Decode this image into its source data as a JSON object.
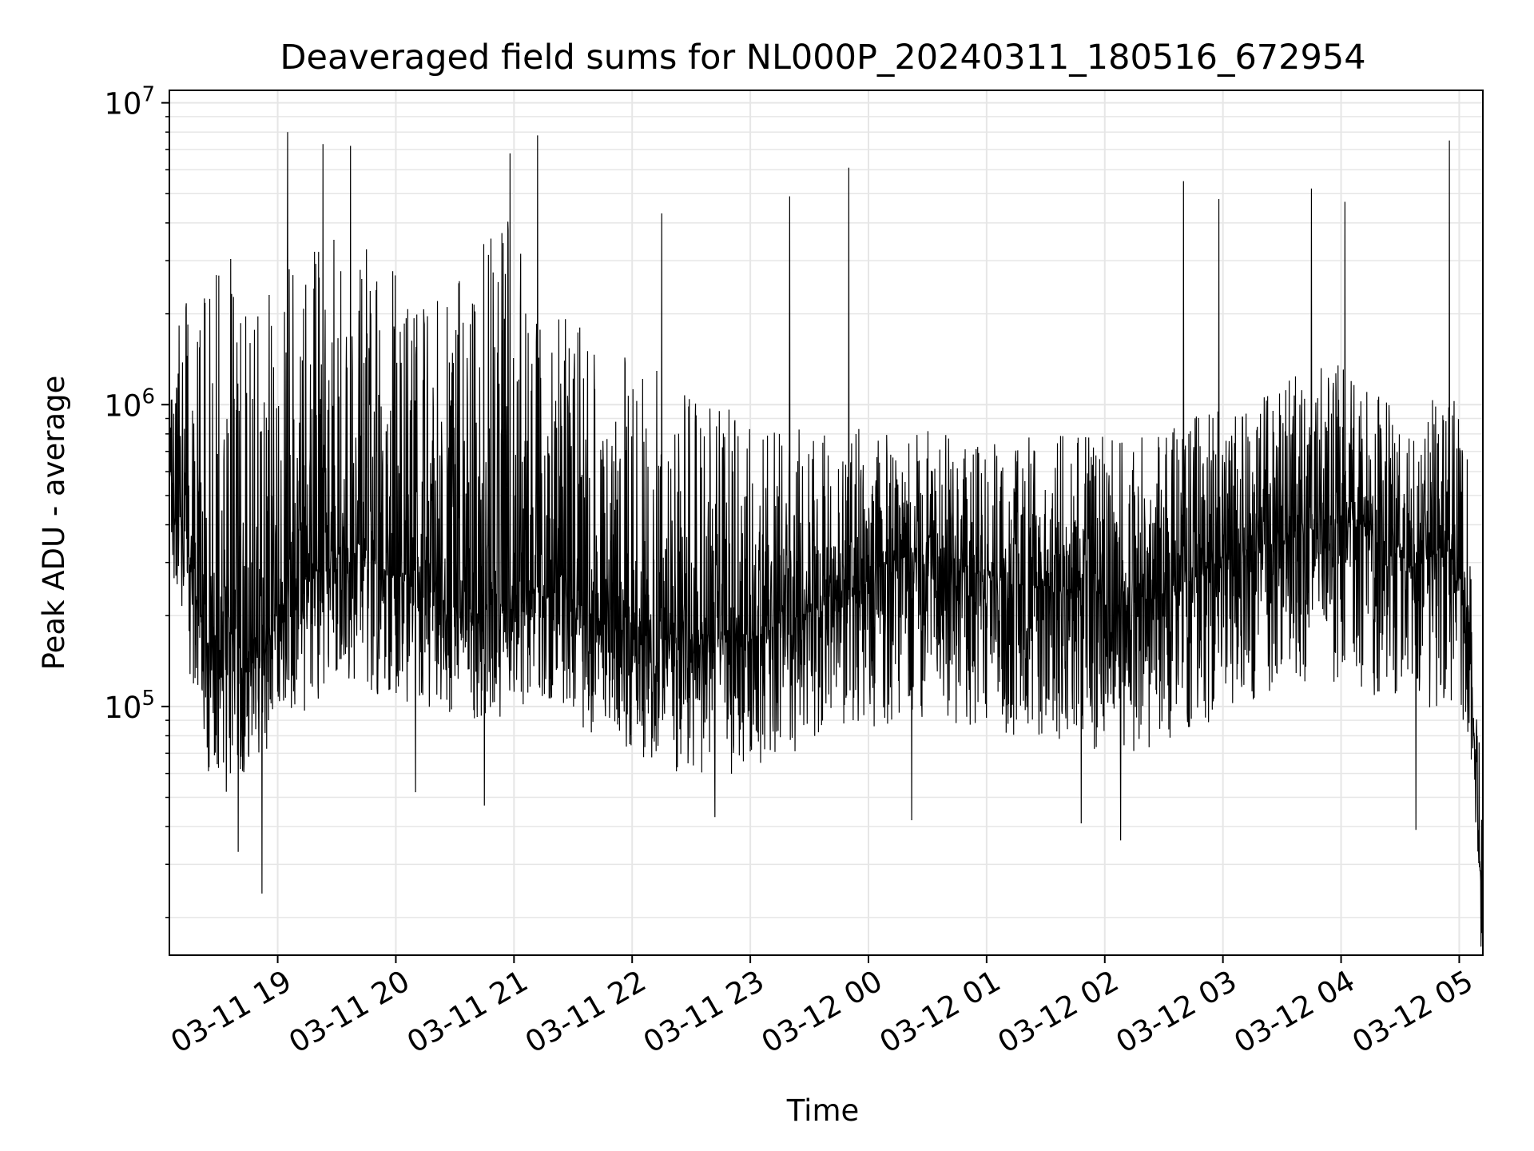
{
  "chart_data": {
    "type": "line",
    "title": "Deaveraged field sums for NL000P_20240311_180516_672954",
    "xlabel": "Time",
    "ylabel": "Peak ADU - average",
    "yscale": "log",
    "ylim": [
      15000,
      11000000
    ],
    "xlim": [
      "2024-03-11 18:05",
      "2024-03-12 05:12"
    ],
    "grid": true,
    "line_color": "#000000",
    "x_ticks": [
      {
        "value": "2024-03-11 19:00",
        "label": "03-11 19"
      },
      {
        "value": "2024-03-11 20:00",
        "label": "03-11 20"
      },
      {
        "value": "2024-03-11 21:00",
        "label": "03-11 21"
      },
      {
        "value": "2024-03-11 22:00",
        "label": "03-11 22"
      },
      {
        "value": "2024-03-11 23:00",
        "label": "03-11 23"
      },
      {
        "value": "2024-03-12 00:00",
        "label": "03-12 00"
      },
      {
        "value": "2024-03-12 01:00",
        "label": "03-12 01"
      },
      {
        "value": "2024-03-12 02:00",
        "label": "03-12 02"
      },
      {
        "value": "2024-03-12 03:00",
        "label": "03-12 03"
      },
      {
        "value": "2024-03-12 04:00",
        "label": "03-12 04"
      },
      {
        "value": "2024-03-12 05:00",
        "label": "03-12 05"
      }
    ],
    "y_ticks": [
      {
        "value": 100000,
        "base": "10",
        "exp": "5"
      },
      {
        "value": 1000000,
        "base": "10",
        "exp": "6"
      },
      {
        "value": 10000000,
        "base": "10",
        "exp": "7"
      }
    ],
    "series": [
      {
        "x": [
          "2024-03-11 18:05",
          "2024-03-11 18:15",
          "2024-03-11 18:25",
          "2024-03-11 18:35",
          "2024-03-11 18:45",
          "2024-03-11 18:55",
          "2024-03-11 19:10",
          "2024-03-11 19:25",
          "2024-03-11 19:40",
          "2024-03-11 19:55",
          "2024-03-11 20:10",
          "2024-03-11 20:25",
          "2024-03-11 20:40",
          "2024-03-11 20:55",
          "2024-03-11 21:10",
          "2024-03-11 21:25",
          "2024-03-11 21:40",
          "2024-03-11 21:55",
          "2024-03-11 22:10",
          "2024-03-11 22:25",
          "2024-03-11 22:40",
          "2024-03-11 22:55",
          "2024-03-11 23:10",
          "2024-03-11 23:25",
          "2024-03-11 23:40",
          "2024-03-11 23:55",
          "2024-03-12 00:10",
          "2024-03-12 00:25",
          "2024-03-12 00:40",
          "2024-03-12 00:55",
          "2024-03-12 01:10",
          "2024-03-12 01:25",
          "2024-03-12 01:40",
          "2024-03-12 01:55",
          "2024-03-12 02:10",
          "2024-03-12 02:25",
          "2024-03-12 02:40",
          "2024-03-12 02:55",
          "2024-03-12 03:10",
          "2024-03-12 03:25",
          "2024-03-12 03:40",
          "2024-03-12 03:55",
          "2024-03-12 04:10",
          "2024-03-12 04:25",
          "2024-03-12 04:40",
          "2024-03-12 04:55",
          "2024-03-12 05:05",
          "2024-03-12 05:12"
        ],
        "y": [
          700000,
          300000,
          150000,
          200000,
          150000,
          180000,
          250000,
          300000,
          350000,
          280000,
          250000,
          230000,
          200000,
          220000,
          250000,
          240000,
          200000,
          180000,
          170000,
          160000,
          170000,
          160000,
          180000,
          200000,
          220000,
          250000,
          300000,
          320000,
          300000,
          280000,
          260000,
          250000,
          250000,
          240000,
          220000,
          230000,
          260000,
          300000,
          330000,
          350000,
          380000,
          400000,
          420000,
          350000,
          300000,
          350000,
          200000,
          18000
        ],
        "upper_envelope": [
          1500000,
          2500000,
          3000000,
          3500000,
          2000000,
          2500000,
          3500000,
          4000000,
          3500000,
          3000000,
          2500000,
          2500000,
          3000000,
          5000000,
          2500000,
          2000000,
          1800000,
          1500000,
          1400000,
          1200000,
          1000000,
          1000000,
          900000,
          850000,
          800000,
          850000,
          800000,
          850000,
          800000,
          850000,
          850000,
          900000,
          800000,
          800000,
          750000,
          800000,
          900000,
          1000000,
          1000000,
          1100000,
          1300000,
          1400000,
          1200000,
          1000000,
          1000000,
          1200000,
          800000,
          50000
        ],
        "lower_envelope": [
          300000,
          120000,
          60000,
          50000,
          60000,
          70000,
          90000,
          110000,
          120000,
          100000,
          100000,
          95000,
          85000,
          90000,
          100000,
          95000,
          80000,
          70000,
          65000,
          60000,
          60000,
          58000,
          65000,
          70000,
          75000,
          80000,
          85000,
          90000,
          88000,
          85000,
          80000,
          78000,
          75000,
          72000,
          68000,
          70000,
          80000,
          90000,
          100000,
          110000,
          120000,
          120000,
          115000,
          100000,
          90000,
          100000,
          80000,
          15000
        ],
        "spikes": [
          {
            "x": "2024-03-11 19:05",
            "y": 8000000
          },
          {
            "x": "2024-03-11 19:23",
            "y": 7300000
          },
          {
            "x": "2024-03-11 19:37",
            "y": 7200000
          },
          {
            "x": "2024-03-11 20:58",
            "y": 6800000
          },
          {
            "x": "2024-03-11 21:12",
            "y": 7800000
          },
          {
            "x": "2024-03-11 22:15",
            "y": 4300000
          },
          {
            "x": "2024-03-11 23:20",
            "y": 4900000
          },
          {
            "x": "2024-03-11 23:50",
            "y": 6100000
          },
          {
            "x": "2024-03-12 02:40",
            "y": 5500000
          },
          {
            "x": "2024-03-12 02:58",
            "y": 4800000
          },
          {
            "x": "2024-03-12 03:45",
            "y": 5200000
          },
          {
            "x": "2024-03-12 04:02",
            "y": 4700000
          },
          {
            "x": "2024-03-12 04:55",
            "y": 7500000
          }
        ],
        "dips": [
          {
            "x": "2024-03-11 18:40",
            "y": 33000
          },
          {
            "x": "2024-03-11 18:52",
            "y": 24000
          },
          {
            "x": "2024-03-11 20:10",
            "y": 52000
          },
          {
            "x": "2024-03-11 20:45",
            "y": 47000
          },
          {
            "x": "2024-03-11 22:42",
            "y": 43000
          },
          {
            "x": "2024-03-12 00:22",
            "y": 42000
          },
          {
            "x": "2024-03-12 01:48",
            "y": 41000
          },
          {
            "x": "2024-03-12 02:08",
            "y": 36000
          },
          {
            "x": "2024-03-12 04:38",
            "y": 39000
          },
          {
            "x": "2024-03-12 05:11",
            "y": 16000
          }
        ]
      }
    ]
  }
}
